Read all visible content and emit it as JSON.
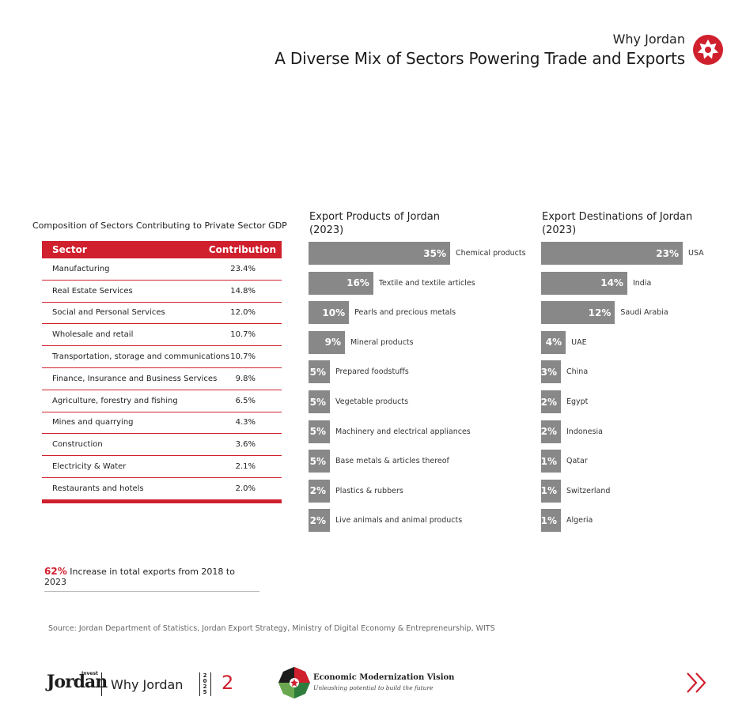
{
  "header": {
    "subtitle": "Why Jordan",
    "title": "A Diverse Mix of Sectors Powering Trade and Exports",
    "brand_color": "#d0202e"
  },
  "sector_table": {
    "caption": "Composition of Sectors Contributing to Private Sector GDP",
    "col_sector": "Sector",
    "col_contribution": "Contribution",
    "rows": [
      {
        "sector": "Manufacturing",
        "value": "23.4%"
      },
      {
        "sector": "Real Estate Services",
        "value": "14.8%"
      },
      {
        "sector": "Social and Personal Services",
        "value": "12.0%"
      },
      {
        "sector": "Wholesale and retail",
        "value": "10.7%"
      },
      {
        "sector": "Transportation, storage and communications",
        "value": "10.7%"
      },
      {
        "sector": "Finance, Insurance and Business Services",
        "value": "9.8%"
      },
      {
        "sector": "Agriculture, forestry and fishing",
        "value": "6.5%"
      },
      {
        "sector": "Mines and quarrying",
        "value": "4.3%"
      },
      {
        "sector": "Construction",
        "value": "3.6%"
      },
      {
        "sector": "Electricity & Water",
        "value": "2.1%"
      },
      {
        "sector": "Restaurants and hotels",
        "value": "2.0%"
      }
    ]
  },
  "highlight": {
    "percent": "62%",
    "text": "Increase in total exports from 2018 to 2023"
  },
  "chart_data": [
    {
      "type": "bar",
      "title": "Export Products of Jordan (2023)",
      "categories": [
        "Chemical products",
        "Textile and textile articles",
        "Pearls and precious metals",
        "Mineral products",
        "Prepared foodstuffs",
        "Vegetable products",
        "Machinery and electrical appliances",
        "Base metals & articles thereof",
        "Plastics & rubbers",
        "Live animals and animal products"
      ],
      "values": [
        35,
        16,
        10,
        9,
        5,
        5,
        5,
        5,
        2,
        2
      ],
      "labels": [
        "35%",
        "16%",
        "10%",
        "9%",
        "5%",
        "5%",
        "5%",
        "5%",
        "2%",
        "2%"
      ]
    },
    {
      "type": "bar",
      "title": "Export Destinations of Jordan (2023)",
      "categories": [
        "USA",
        "India",
        "Saudi Arabia",
        "UAE",
        "China",
        "Egypt",
        "Indonesia",
        "Qatar",
        "Switzerland",
        "Algeria"
      ],
      "values": [
        23,
        14,
        12,
        4,
        3,
        2,
        2,
        1,
        1,
        1
      ],
      "labels": [
        "23%",
        "14%",
        "12%",
        "4%",
        "3%",
        "2%",
        "2%",
        "1%",
        "1%",
        "1%"
      ]
    }
  ],
  "chart_titles": {
    "products_line1": "Export Products of Jordan",
    "products_line2": "(2023)",
    "dest_line1": "Export Destinations of Jordan",
    "dest_line2": "(2023)"
  },
  "source": "Source: Jordan Department of Statistics, Jordan Export Strategy, Ministry of Digital Economy & Entrepreneurship, WITS",
  "footer": {
    "brand": "Jordan",
    "brand_small": "Invest",
    "section": "Why Jordan",
    "year": "2025",
    "page": "2",
    "emv_title": "Economic Modernization Vision",
    "emv_subtitle": "Unleashing potential to build the future",
    "next_icon": "double-chevron-right-icon"
  }
}
